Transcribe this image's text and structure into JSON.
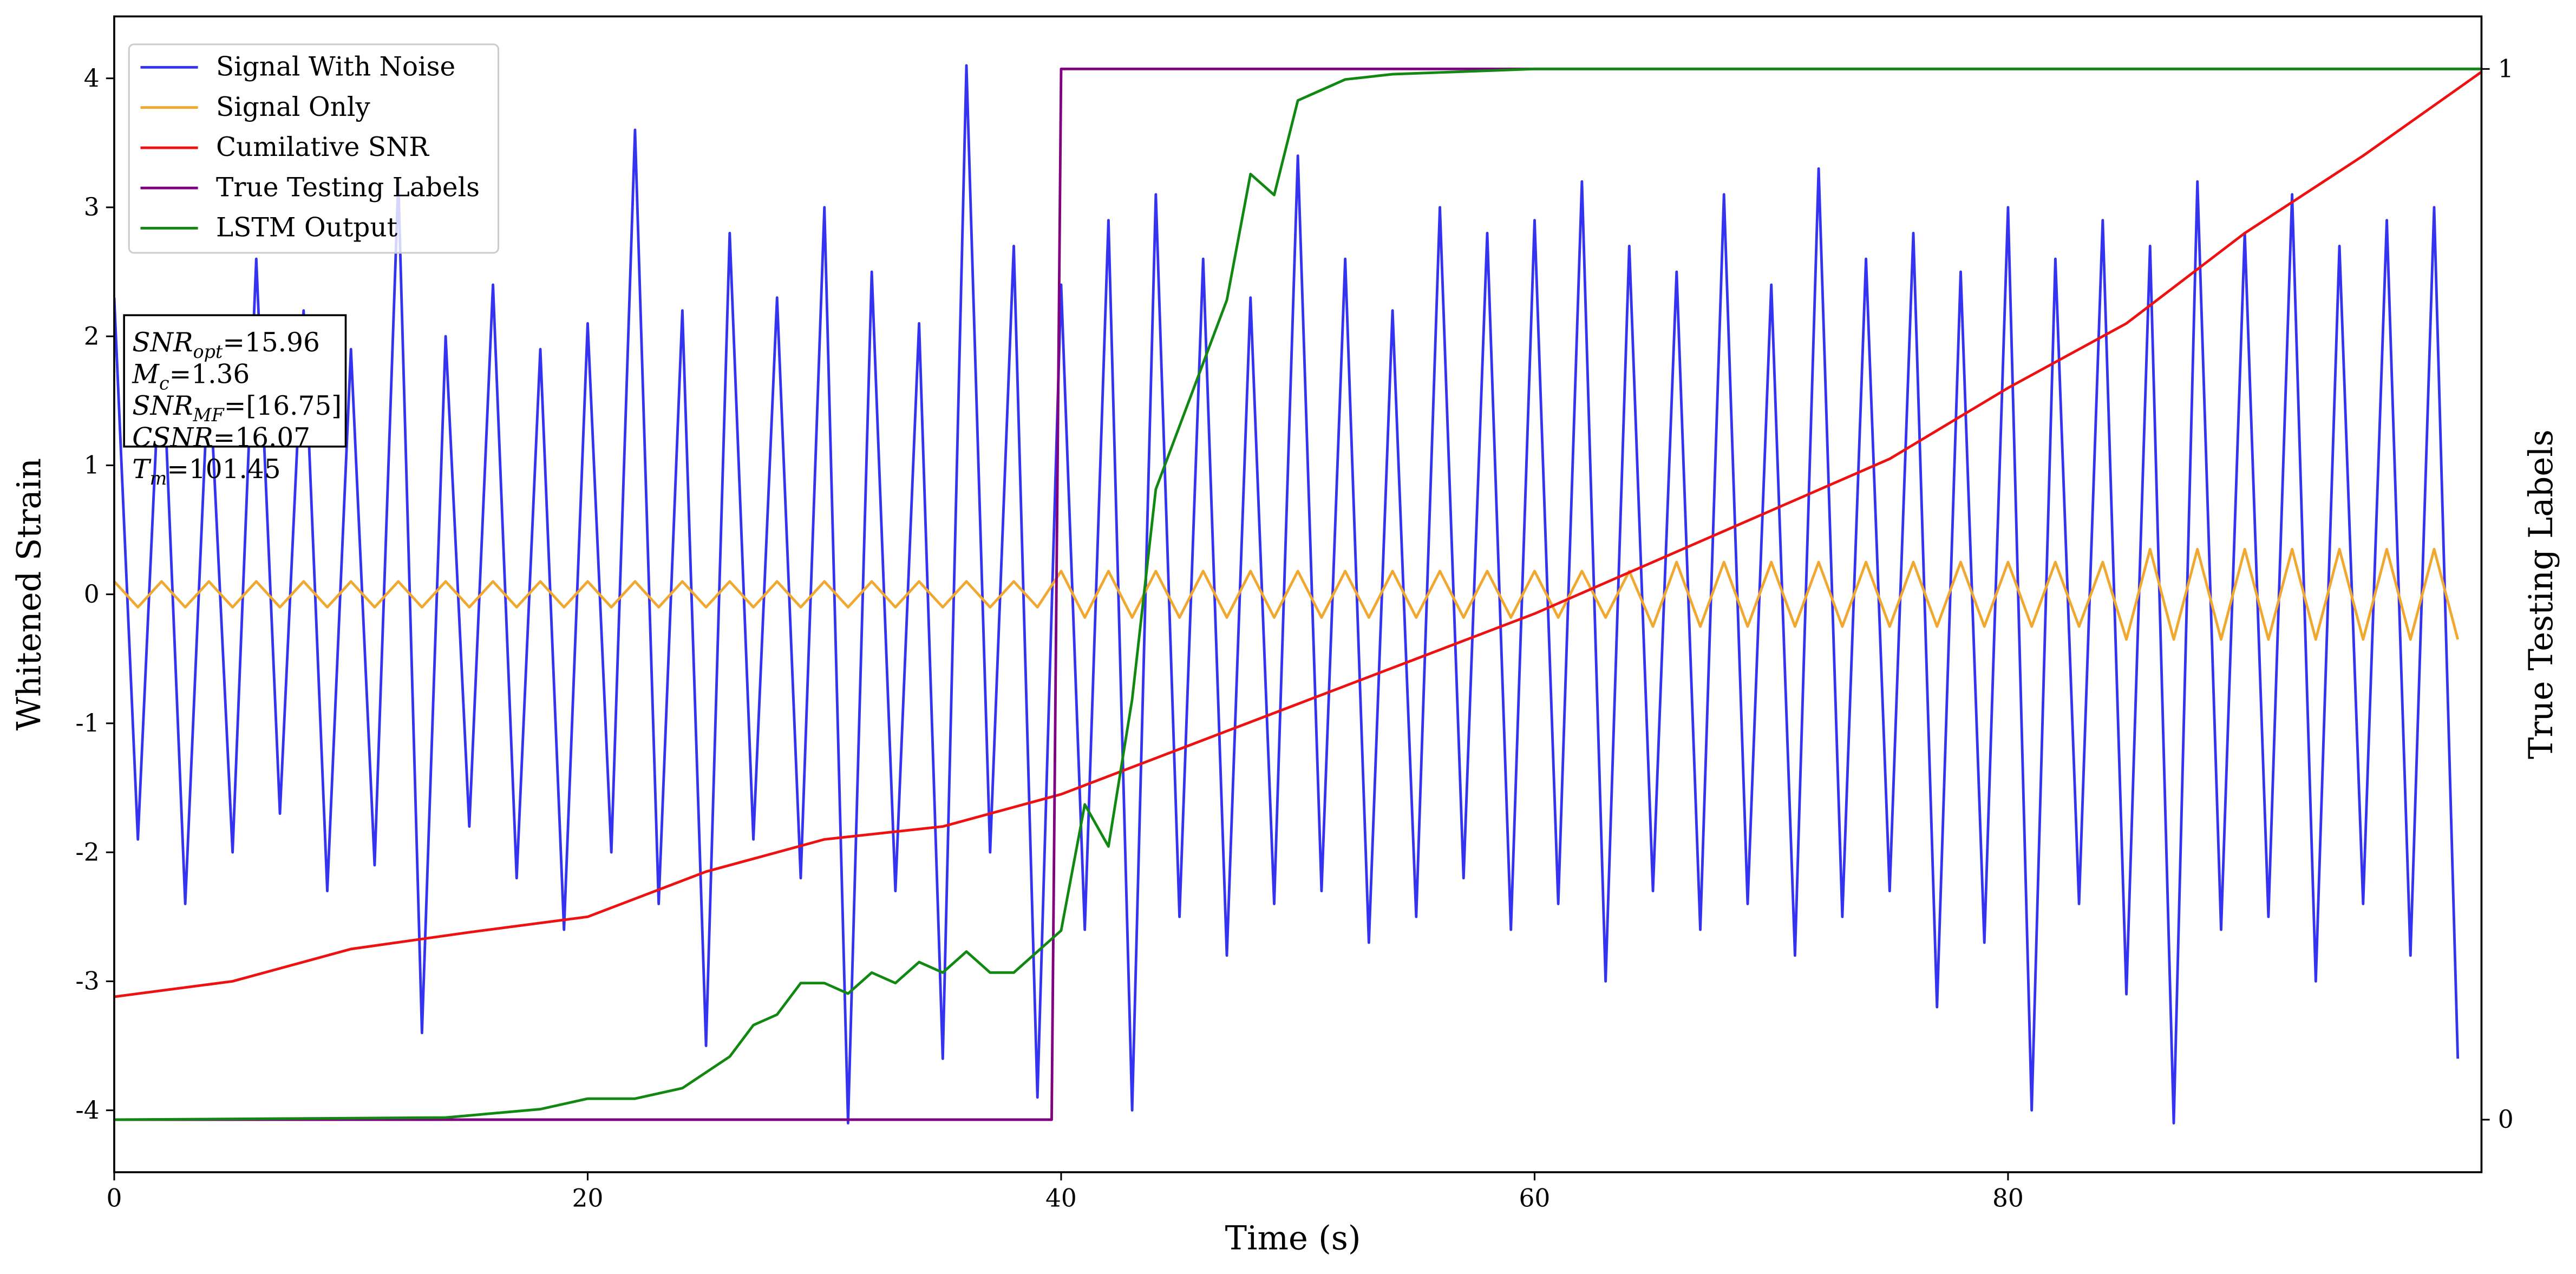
{
  "chart_data": {
    "type": "line",
    "xlabel": "Time (s)",
    "ylabel": "Whitened Strain",
    "y2label": "True Testing Labels",
    "xlim": [
      0,
      100
    ],
    "xticks": [
      0,
      20,
      40,
      60,
      80
    ],
    "ylim": [
      -4.48,
      4.48
    ],
    "yticks": [
      -4,
      -3,
      -2,
      -1,
      0,
      1,
      2,
      3,
      4
    ],
    "y2lim": [
      -0.05,
      1.05
    ],
    "y2ticks": [
      0,
      1
    ],
    "grid": false,
    "legend": "upper left",
    "x": [
      0,
      1,
      2,
      3,
      4,
      5,
      6,
      7,
      8,
      9,
      10,
      11,
      12,
      13,
      14,
      15,
      16,
      17,
      18,
      19,
      20,
      21,
      22,
      23,
      24,
      25,
      26,
      27,
      28,
      29,
      30,
      31,
      32,
      33,
      34,
      35,
      36,
      37,
      38,
      39,
      40,
      41,
      42,
      43,
      44,
      45,
      46,
      47,
      48,
      49,
      50,
      51,
      52,
      53,
      54,
      55,
      56,
      57,
      58,
      59,
      60,
      61,
      62,
      63,
      64,
      65,
      66,
      67,
      68,
      69,
      70,
      71,
      72,
      73,
      74,
      75,
      76,
      77,
      78,
      79,
      80,
      81,
      82,
      83,
      84,
      85,
      86,
      87,
      88,
      89,
      90,
      91,
      92,
      93,
      94,
      95,
      96,
      97,
      98,
      99
    ],
    "series": [
      {
        "name": "Signal With Noise",
        "color": "#3333f0",
        "values": [
          2.3,
          -1.9,
          2.1,
          -2.4,
          1.8,
          -2.0,
          2.6,
          -1.7,
          2.2,
          -2.3,
          1.9,
          -2.1,
          3.2,
          -3.4,
          2.0,
          -1.8,
          2.4,
          -2.2,
          1.9,
          -2.6,
          2.1,
          -2.0,
          3.6,
          -2.4,
          2.2,
          -3.5,
          2.8,
          -1.9,
          2.3,
          -2.2,
          3.0,
          -4.1,
          2.5,
          -2.3,
          2.1,
          -3.6,
          4.1,
          -2.0,
          2.7,
          -3.9,
          2.4,
          -2.6,
          2.9,
          -4.0,
          3.1,
          -2.5,
          2.6,
          -2.8,
          2.3,
          -2.4,
          3.4,
          -2.3,
          2.6,
          -2.7,
          2.2,
          -2.5,
          3.0,
          -2.2,
          2.8,
          -2.6,
          2.9,
          -2.4,
          3.2,
          -3.0,
          2.7,
          -2.3,
          2.5,
          -2.6,
          3.1,
          -2.4,
          2.4,
          -2.8,
          3.3,
          -2.5,
          2.6,
          -2.3,
          2.8,
          -3.2,
          2.5,
          -2.7,
          3.0,
          -4.0,
          2.6,
          -2.4,
          2.9,
          -3.1,
          2.7,
          -4.1,
          3.2,
          -2.6,
          2.8,
          -2.5,
          3.1,
          -3.0,
          2.7,
          -2.4,
          2.9,
          -2.8,
          3.0,
          -3.6
        ]
      },
      {
        "name": "Signal Only",
        "color": "#f0a830",
        "values": [
          0.1,
          -0.1,
          0.1,
          -0.1,
          0.1,
          -0.1,
          0.1,
          -0.1,
          0.1,
          -0.1,
          0.1,
          -0.1,
          0.1,
          -0.1,
          0.1,
          -0.1,
          0.1,
          -0.1,
          0.1,
          -0.1,
          0.1,
          -0.1,
          0.1,
          -0.1,
          0.1,
          -0.1,
          0.1,
          -0.1,
          0.1,
          -0.1,
          0.1,
          -0.1,
          0.1,
          -0.1,
          0.1,
          -0.1,
          0.1,
          -0.1,
          0.1,
          -0.1,
          0.18,
          -0.18,
          0.18,
          -0.18,
          0.18,
          -0.18,
          0.18,
          -0.18,
          0.18,
          -0.18,
          0.18,
          -0.18,
          0.18,
          -0.18,
          0.18,
          -0.18,
          0.18,
          -0.18,
          0.18,
          -0.18,
          0.18,
          -0.18,
          0.18,
          -0.18,
          0.18,
          -0.25,
          0.25,
          -0.25,
          0.25,
          -0.25,
          0.25,
          -0.25,
          0.25,
          -0.25,
          0.25,
          -0.25,
          0.25,
          -0.25,
          0.25,
          -0.25,
          0.25,
          -0.25,
          0.25,
          -0.25,
          0.25,
          -0.35,
          0.35,
          -0.35,
          0.35,
          -0.35,
          0.35,
          -0.35,
          0.35,
          -0.35,
          0.35,
          -0.35,
          0.35,
          -0.35,
          0.35,
          -0.35
        ]
      },
      {
        "name": "Cumilative SNR",
        "color": "#ee1111",
        "x": [
          0,
          5,
          10,
          15,
          20,
          25,
          30,
          35,
          40,
          45,
          50,
          55,
          60,
          65,
          70,
          75,
          80,
          85,
          90,
          95,
          100
        ],
        "values": [
          -3.12,
          -3.0,
          -2.75,
          -2.62,
          -2.5,
          -2.15,
          -1.9,
          -1.8,
          -1.55,
          -1.2,
          -0.85,
          -0.5,
          -0.15,
          0.25,
          0.65,
          1.05,
          1.6,
          2.1,
          2.8,
          3.4,
          4.05
        ]
      },
      {
        "name": "True Testing Labels",
        "color": "#800080",
        "axis": "y2",
        "x": [
          0,
          39.6,
          40,
          100
        ],
        "values": [
          0,
          0,
          1,
          1
        ]
      },
      {
        "name": "LSTM Output",
        "color": "#118811",
        "axis": "y2",
        "x": [
          0,
          14,
          18,
          20,
          22,
          24,
          26,
          27,
          28,
          29,
          30,
          31,
          32,
          33,
          34,
          35,
          36,
          37,
          38,
          39,
          40,
          41,
          42,
          43,
          44,
          45,
          46,
          47,
          48,
          49,
          50,
          52,
          54,
          60,
          100
        ],
        "values": [
          0,
          0.002,
          0.01,
          0.02,
          0.02,
          0.03,
          0.06,
          0.09,
          0.1,
          0.13,
          0.13,
          0.12,
          0.14,
          0.13,
          0.15,
          0.14,
          0.16,
          0.14,
          0.14,
          0.16,
          0.18,
          0.3,
          0.26,
          0.4,
          0.6,
          0.66,
          0.72,
          0.78,
          0.9,
          0.88,
          0.97,
          0.99,
          0.995,
          1,
          1
        ]
      }
    ],
    "annotations": [
      {
        "name": "SNR",
        "sub": "opt",
        "text": "=15.96"
      },
      {
        "name": "M",
        "sub": "c",
        "text": "=1.36"
      },
      {
        "name": "SNR",
        "sub": "MF",
        "text": "=[16.75]"
      },
      {
        "name": "CSNR",
        "text": "=16.07"
      },
      {
        "name": "T",
        "sub": "m",
        "text": "=101.45"
      }
    ]
  }
}
